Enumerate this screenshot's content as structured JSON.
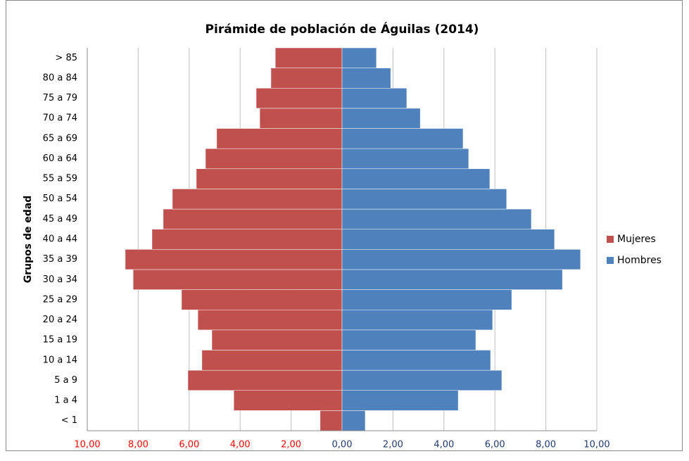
{
  "chart_data": {
    "type": "pyramid",
    "title": "Pirámide de población de Águilas (2014)",
    "y_label": "Grupos de edad",
    "categories": [
      "< 1",
      "1  a 4",
      "5 a 9",
      "10 a 14",
      "15 a 19",
      "20 a 24",
      "25 a 29",
      "30 a 34",
      "35 a 39",
      "40 a 44",
      "45 a 49",
      "50 a 54",
      "55 a 59",
      "60 a 64",
      "65 a 69",
      "70 a 74",
      "75 a 79",
      "80 a 84",
      "> 85"
    ],
    "series": [
      {
        "name": "Mujeres",
        "color": "#c0504d",
        "values": [
          -0.86,
          -4.25,
          -6.05,
          -5.5,
          -5.11,
          -5.66,
          -6.3,
          -8.2,
          -8.51,
          -7.46,
          -7.02,
          -6.66,
          -5.72,
          -5.36,
          -4.92,
          -3.23,
          -3.37,
          -2.79,
          -2.62
        ]
      },
      {
        "name": "Hombres",
        "color": "#4f81bd",
        "values": [
          0.91,
          4.56,
          6.27,
          5.83,
          5.25,
          5.91,
          6.66,
          8.65,
          9.36,
          8.34,
          7.43,
          6.46,
          5.8,
          4.97,
          4.75,
          3.07,
          2.54,
          1.91,
          1.35
        ]
      }
    ],
    "xlim": [
      -10,
      10
    ],
    "xticks": [
      {
        "value": -10,
        "label": "10,00"
      },
      {
        "value": -8,
        "label": "8,00"
      },
      {
        "value": -6,
        "label": "6,00"
      },
      {
        "value": -4,
        "label": "4,00"
      },
      {
        "value": -2,
        "label": "2,00"
      },
      {
        "value": 0,
        "label": "0,00"
      },
      {
        "value": 2,
        "label": "2,00"
      },
      {
        "value": 4,
        "label": "4,00"
      },
      {
        "value": 6,
        "label": "6,00"
      },
      {
        "value": 8,
        "label": "8,00"
      },
      {
        "value": 10,
        "label": "10,00"
      }
    ],
    "grid": true,
    "legend": "right"
  }
}
